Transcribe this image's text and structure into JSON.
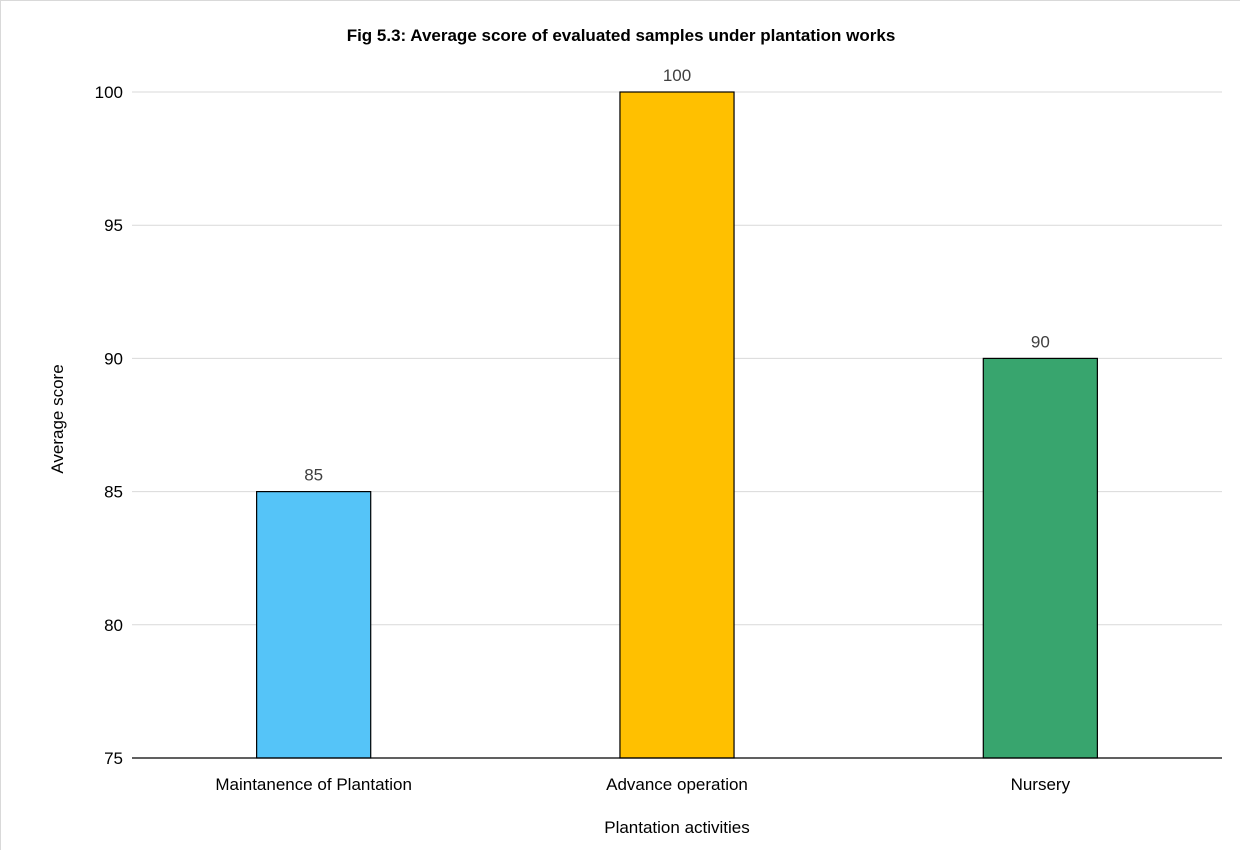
{
  "chart_data": {
    "type": "bar",
    "title": "Fig 5.3: Average score of evaluated samples under plantation works",
    "xlabel": "Plantation activities",
    "ylabel": "Average score",
    "categories": [
      "Maintanence of Plantation",
      "Advance operation",
      "Nursery"
    ],
    "values": [
      85,
      100,
      90
    ],
    "data_labels": [
      "85",
      "100",
      "90"
    ],
    "ylim": [
      75,
      100
    ],
    "yticks": [
      75,
      80,
      85,
      90,
      95,
      100
    ],
    "ytick_labels": [
      "75",
      "80",
      "85",
      "90",
      "95",
      "100"
    ],
    "colors": [
      "#55c4f8",
      "#ffc000",
      "#38a56e"
    ],
    "grid": "horizontal",
    "legend": "none"
  }
}
